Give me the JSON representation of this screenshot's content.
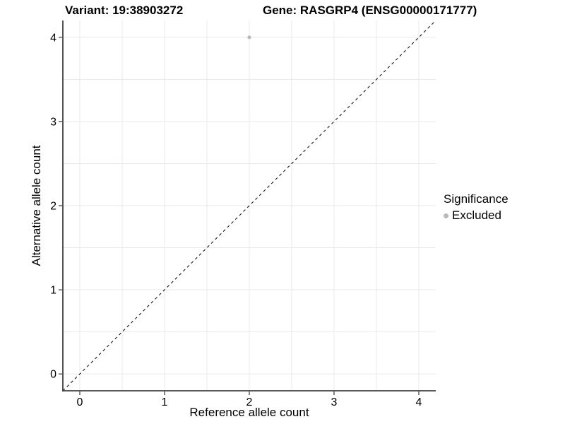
{
  "chart_data": {
    "type": "scatter",
    "titles": {
      "left": "Variant: 19:38903272",
      "right": "Gene: RASGRP4 (ENSG00000171777)"
    },
    "xlabel": "Reference allele count",
    "ylabel": "Alternative allele count",
    "xlim": [
      0,
      4
    ],
    "ylim": [
      0,
      4
    ],
    "expand_mult": 0.05,
    "xticks": [
      0,
      1,
      2,
      3,
      4
    ],
    "yticks": [
      0,
      1,
      2,
      3,
      4
    ],
    "grid": true,
    "grid_step": 0.5,
    "points": [
      {
        "x": 2,
        "y": 4,
        "significance": "Excluded"
      }
    ],
    "reference_line": {
      "kind": "identity",
      "slope": 1,
      "intercept": 0,
      "dashed": true
    },
    "legend": {
      "title": "Significance",
      "position": "right",
      "items": [
        {
          "label": "Excluded",
          "color": "#b9b9b9"
        }
      ]
    },
    "colors": {
      "background": "#ffffff",
      "point": "#b9b9b9",
      "grid": "#e9e9e9",
      "axis_line": "#404040",
      "tick_mark": "#333333",
      "text": "#000000",
      "ref_line": "#000000"
    }
  }
}
